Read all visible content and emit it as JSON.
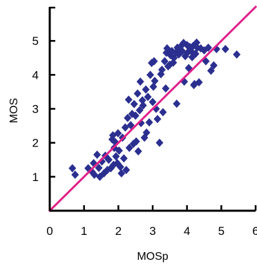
{
  "chart_data": {
    "type": "scatter",
    "title": "",
    "xlabel": "MOSp",
    "ylabel": "MOS",
    "xlim": [
      0,
      6
    ],
    "ylim": [
      0,
      6
    ],
    "x_ticks": [
      "0",
      "1",
      "2",
      "3",
      "4",
      "5",
      "6"
    ],
    "y_ticks": [
      "1",
      "2",
      "3",
      "4",
      "5"
    ],
    "grid": false,
    "legend": "none",
    "marker": "diamond",
    "marker_color": "#2b2f8f",
    "reference_line": {
      "from": [
        0,
        0
      ],
      "to": [
        6,
        6
      ],
      "color": "#e0218a"
    },
    "series": [
      {
        "points": [
          [
            0.66,
            1.25
          ],
          [
            0.74,
            1.06
          ],
          [
            1.12,
            1.25
          ],
          [
            1.23,
            1.15
          ],
          [
            1.28,
            1.4
          ],
          [
            1.3,
            1.06
          ],
          [
            1.38,
            1.65
          ],
          [
            1.43,
            1.26
          ],
          [
            1.46,
            1.0
          ],
          [
            1.52,
            1.45
          ],
          [
            1.58,
            1.1
          ],
          [
            1.62,
            1.62
          ],
          [
            1.68,
            1.2
          ],
          [
            1.72,
            1.5
          ],
          [
            1.78,
            1.25
          ],
          [
            1.82,
            2.1
          ],
          [
            1.84,
            2.22
          ],
          [
            1.86,
            1.35
          ],
          [
            1.88,
            1.85
          ],
          [
            1.91,
            2.02
          ],
          [
            1.93,
            1.6
          ],
          [
            1.97,
            1.4
          ],
          [
            1.99,
            2.28
          ],
          [
            2.02,
            1.77
          ],
          [
            2.06,
            1.29
          ],
          [
            2.09,
            1.1
          ],
          [
            2.12,
            2.15
          ],
          [
            2.16,
            1.54
          ],
          [
            2.2,
            2.45
          ],
          [
            2.23,
            1.2
          ],
          [
            2.27,
            2.73
          ],
          [
            2.3,
            3.27
          ],
          [
            2.32,
            1.85
          ],
          [
            2.36,
            2.52
          ],
          [
            2.4,
            2.85
          ],
          [
            2.44,
            1.97
          ],
          [
            2.46,
            3.14
          ],
          [
            2.5,
            2.8
          ],
          [
            2.52,
            2.04
          ],
          [
            2.56,
            3.45
          ],
          [
            2.58,
            1.75
          ],
          [
            2.62,
            2.96
          ],
          [
            2.64,
            3.8
          ],
          [
            2.66,
            2.58
          ],
          [
            2.7,
            3.25
          ],
          [
            2.72,
            3.1
          ],
          [
            2.76,
            2.15
          ],
          [
            2.8,
            3.57
          ],
          [
            2.82,
            2.3
          ],
          [
            2.86,
            3.35
          ],
          [
            2.9,
            2.6
          ],
          [
            2.93,
            4.0
          ],
          [
            2.97,
            4.35
          ],
          [
            3.0,
            3.2
          ],
          [
            3.02,
            3.65
          ],
          [
            3.04,
            4.4
          ],
          [
            3.06,
            3.82
          ],
          [
            3.1,
            3.0
          ],
          [
            3.14,
            2.7
          ],
          [
            3.2,
            2.0
          ],
          [
            3.24,
            4.02
          ],
          [
            3.27,
            4.15
          ],
          [
            3.3,
            2.9
          ],
          [
            3.35,
            4.4
          ],
          [
            3.38,
            3.6
          ],
          [
            3.4,
            4.65
          ],
          [
            3.42,
            4.78
          ],
          [
            3.45,
            4.25
          ],
          [
            3.5,
            4.3
          ],
          [
            3.52,
            4.58
          ],
          [
            3.56,
            4.7
          ],
          [
            3.6,
            4.36
          ],
          [
            3.62,
            4.5
          ],
          [
            3.68,
            4.66
          ],
          [
            3.7,
            3.15
          ],
          [
            3.72,
            4.8
          ],
          [
            3.76,
            4.6
          ],
          [
            3.8,
            4.72
          ],
          [
            3.82,
            4.84
          ],
          [
            3.86,
            4.7
          ],
          [
            3.9,
            4.94
          ],
          [
            3.92,
            3.8
          ],
          [
            3.95,
            4.55
          ],
          [
            4.0,
            4.88
          ],
          [
            4.02,
            4.66
          ],
          [
            4.05,
            4.2
          ],
          [
            4.08,
            4.82
          ],
          [
            4.1,
            4.8
          ],
          [
            4.12,
            4.7
          ],
          [
            4.15,
            4.52
          ],
          [
            4.18,
            4.85
          ],
          [
            4.2,
            3.7
          ],
          [
            4.22,
            3.73
          ],
          [
            4.25,
            4.62
          ],
          [
            4.28,
            4.95
          ],
          [
            4.3,
            4.8
          ],
          [
            4.35,
            3.78
          ],
          [
            4.4,
            4.78
          ],
          [
            4.5,
            4.72
          ],
          [
            4.55,
            4.4
          ],
          [
            4.62,
            4.8
          ],
          [
            4.7,
            4.12
          ],
          [
            4.78,
            4.28
          ],
          [
            4.86,
            4.76
          ],
          [
            5.12,
            4.76
          ],
          [
            5.45,
            4.6
          ]
        ]
      }
    ]
  }
}
